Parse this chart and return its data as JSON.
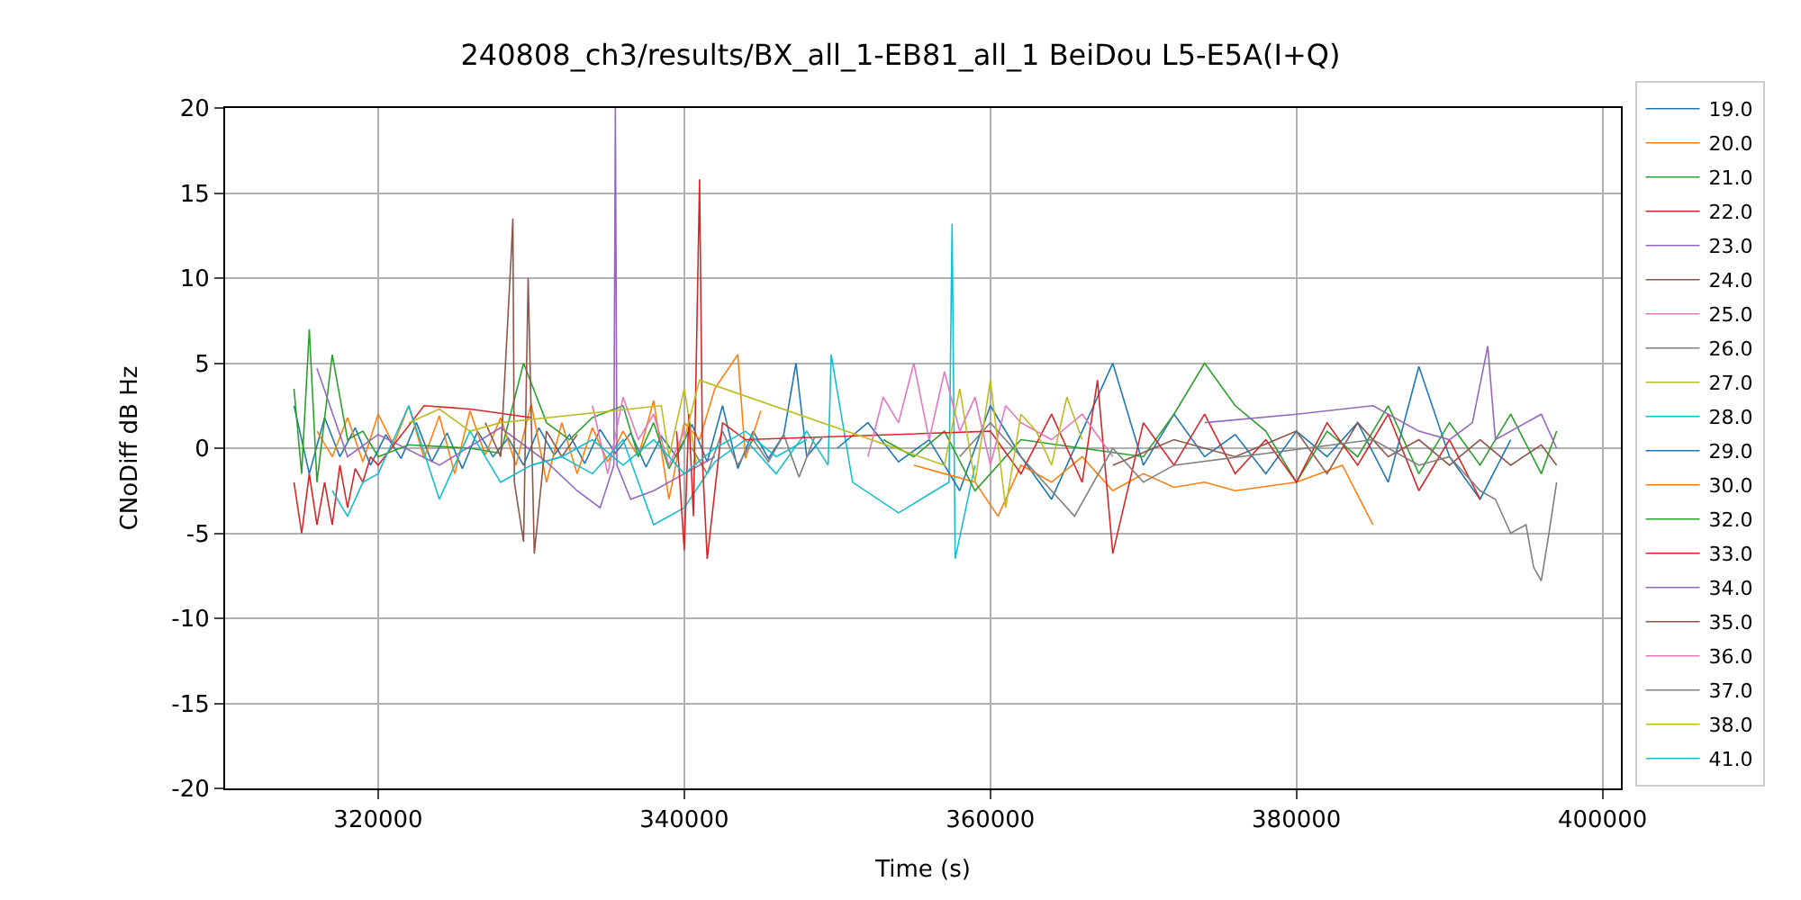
{
  "chart_data": {
    "type": "line",
    "title": "240808_ch3/results/BX_all_1-EB81_all_1 BeiDou L5-E5A(I+Q)",
    "xlabel": "Time (s)",
    "ylabel": "CNoDiff dB Hz",
    "xlim": [
      310000,
      401200
    ],
    "ylim": [
      -20,
      20
    ],
    "xticks": [
      320000,
      340000,
      360000,
      380000,
      400000
    ],
    "yticks": [
      -20,
      -15,
      -10,
      -5,
      0,
      5,
      10,
      15,
      20
    ],
    "grid": true,
    "legend": "right",
    "marker": "none",
    "line_style": "solid",
    "series": [
      {
        "name": "19.0",
        "color": "#1f77b4",
        "x": [
          314500,
          315500,
          316500,
          317500,
          318500,
          319500,
          320500,
          321500,
          322500,
          323500,
          324500,
          325500,
          326500,
          327500,
          328500,
          329500,
          330500,
          331500,
          332500,
          333500,
          334500,
          335500,
          336500,
          337500,
          338500,
          339500,
          340500,
          341500,
          342500,
          343500,
          344500,
          345500,
          346500,
          347300,
          348000,
          349000
        ],
        "values": [
          2.5,
          -1.5,
          1.8,
          -0.5,
          1.2,
          -1.0,
          0.8,
          -0.6,
          1.5,
          -0.8,
          0.9,
          -1.2,
          1.0,
          -0.5,
          0.6,
          -1.0,
          1.2,
          -0.4,
          0.8,
          -0.9,
          1.1,
          -0.3,
          0.9,
          -1.1,
          0.7,
          -0.5,
          1.4,
          -0.8,
          2.5,
          -1.2,
          1.0,
          -0.6,
          0.8,
          5.0,
          -0.5,
          0.6
        ]
      },
      {
        "name": "20.0",
        "color": "#ff7f0e",
        "x": [
          316000,
          317000,
          318000,
          319000,
          320000,
          321000,
          322000,
          323000,
          324000,
          325000,
          326000,
          327000,
          328000,
          329000,
          330000,
          331000,
          332000,
          333000,
          334000,
          335000,
          336000,
          337000,
          338000,
          339000,
          340000,
          341000,
          342000,
          343500,
          344000,
          345000
        ],
        "values": [
          1.0,
          -0.5,
          1.8,
          -0.8,
          2.0,
          0.2,
          2.5,
          -0.6,
          1.9,
          -1.5,
          2.2,
          -0.4,
          1.8,
          -1.0,
          2.6,
          -2.0,
          1.5,
          -1.5,
          1.2,
          -0.8,
          1.0,
          -0.5,
          2.8,
          -3.0,
          1.5,
          0.5,
          3.5,
          5.5,
          -0.6,
          2.2
        ]
      },
      {
        "name": "21.0",
        "color": "#2ca02c",
        "x": [
          314500,
          315000,
          315500,
          316000,
          317000,
          318000,
          319000,
          320000,
          322000,
          324000,
          326000,
          328000,
          329500,
          331000,
          332500,
          334000,
          336000,
          337000,
          338000,
          339000,
          340000
        ],
        "values": [
          3.5,
          -1.5,
          7.0,
          -2.0,
          5.5,
          0.5,
          1.0,
          -0.5,
          0.2,
          0.1,
          0.0,
          -0.3,
          5.0,
          1.5,
          0.5,
          1.8,
          2.5,
          -0.5,
          1.5,
          -1.2,
          0.5
        ]
      },
      {
        "name": "22.0",
        "color": "#d62728",
        "x": [
          314500,
          315000,
          315500,
          316000,
          316500,
          317000,
          317500,
          318000,
          318500,
          319000,
          319500,
          320000,
          323000,
          326000,
          330000
        ],
        "values": [
          -2.0,
          -5.0,
          -1.5,
          -4.5,
          -2.0,
          -4.5,
          -1.0,
          -3.5,
          -1.2,
          -2.0,
          -0.5,
          -1.0,
          2.5,
          2.3,
          1.8
        ]
      },
      {
        "name": "23.0",
        "color": "#9467bd",
        "x": [
          316000,
          318000,
          320000,
          324000,
          328000,
          331000,
          333000,
          334500,
          335400,
          335500,
          335600,
          336500,
          338000,
          340000,
          342000
        ],
        "values": [
          4.7,
          -0.5,
          0.8,
          -1.0,
          1.2,
          -0.8,
          -2.5,
          -3.5,
          -1.0,
          20.0,
          -1.0,
          -3.0,
          -2.5,
          -1.5,
          -0.5
        ]
      },
      {
        "name": "24.0",
        "color": "#8c564b",
        "x": [
          327000,
          328000,
          328700,
          328800,
          328900,
          329500,
          329800,
          330200,
          331000,
          332000,
          333000
        ],
        "values": [
          1.5,
          -0.5,
          11.5,
          13.5,
          -2.0,
          -5.5,
          10.0,
          -6.2,
          1.0,
          -0.5,
          0.8
        ]
      },
      {
        "name": "25.0",
        "color": "#e377c2",
        "x": [
          334000,
          335000,
          336000,
          337000,
          338000,
          339000,
          340000
        ],
        "values": [
          2.5,
          -1.5,
          3.0,
          0.5,
          2.0,
          -1.0,
          1.0
        ]
      },
      {
        "name": "26.0",
        "color": "#7f7f7f",
        "x": [
          340500,
          341500,
          342500,
          343500,
          344500,
          345500,
          346500,
          347500,
          348500
        ],
        "values": [
          0.0,
          -1.5,
          1.0,
          -1.0,
          0.5,
          -0.8,
          0.8,
          -1.7,
          0.6
        ]
      },
      {
        "name": "27.0",
        "color": "#bcbd22",
        "x": [
          322000,
          324000,
          326000,
          328000,
          338500,
          339000,
          340000,
          340800
        ],
        "values": [
          1.5,
          2.3,
          1.0,
          1.5,
          2.5,
          -0.5,
          3.5,
          -1.0
        ]
      },
      {
        "name": "28.0",
        "color": "#17becf",
        "x": [
          317000,
          318000,
          319000,
          320000,
          322000,
          324000,
          326000,
          328000,
          330000,
          332000,
          334000,
          336000,
          338000,
          340000,
          342000,
          344000,
          346000,
          348000,
          349400,
          349600,
          351000,
          354000,
          357300,
          357500,
          357700,
          359000
        ],
        "values": [
          -2.5,
          -4.0,
          -2.0,
          -1.5,
          2.5,
          -3.0,
          1.0,
          -2.0,
          -1.0,
          -0.5,
          -1.5,
          0.5,
          -4.5,
          -3.5,
          -0.8,
          0.5,
          -1.5,
          1.0,
          -1.0,
          5.5,
          -2.0,
          -3.8,
          -2.0,
          13.2,
          -6.5,
          -1.0
        ]
      },
      {
        "name": "29.0",
        "color": "#1f77b4",
        "x": [
          350000,
          352000,
          354000,
          356000,
          358000,
          360000,
          362000,
          364000,
          366000,
          368000,
          370000,
          372000,
          374000,
          376000,
          378000,
          380000,
          382000,
          384000,
          386000,
          388000,
          390000,
          392000,
          394000
        ],
        "values": [
          0.0,
          1.5,
          -0.8,
          0.5,
          -2.5,
          2.5,
          -0.5,
          -3.0,
          1.0,
          5.0,
          -1.0,
          2.0,
          -0.5,
          0.8,
          -1.5,
          1.0,
          -0.5,
          1.5,
          -2.0,
          4.8,
          -0.5,
          -3.0,
          0.5
        ]
      },
      {
        "name": "30.0",
        "color": "#ff7f0e",
        "x": [
          355000,
          357000,
          359000,
          360500,
          362000,
          364000,
          366000,
          368000,
          370000,
          372000,
          374000,
          376000,
          380000,
          383000,
          385000
        ],
        "values": [
          -1.0,
          -1.5,
          -2.0,
          -4.0,
          -1.0,
          -2.0,
          -0.5,
          -2.5,
          -1.5,
          -2.3,
          -2.0,
          -2.5,
          -2.0,
          -1.0,
          -4.5
        ]
      },
      {
        "name": "32.0",
        "color": "#2ca02c",
        "x": [
          353000,
          355000,
          357000,
          359000,
          362000,
          366000,
          370000,
          372000,
          374000,
          376000,
          378000,
          380000,
          382000,
          384000,
          386000,
          388000,
          390000,
          392000,
          394000,
          396000,
          397000
        ],
        "values": [
          0.5,
          -0.5,
          1.0,
          -2.5,
          0.5,
          0.0,
          -0.5,
          2.0,
          5.0,
          2.5,
          1.0,
          -2.0,
          1.0,
          -0.5,
          2.5,
          -1.5,
          1.5,
          -1.0,
          2.0,
          -1.5,
          1.0
        ]
      },
      {
        "name": "33.0",
        "color": "#d62728",
        "x": [
          339500,
          340000,
          340300,
          340600,
          341000,
          341200,
          341500,
          342500,
          344000,
          360000,
          362000,
          364000,
          366000,
          367000,
          368000,
          370000,
          372000,
          374000,
          376000,
          378000,
          380000,
          382000,
          384000,
          386000,
          388000,
          390000,
          392000
        ],
        "values": [
          1.0,
          -6.0,
          2.0,
          -4.0,
          15.8,
          -1.0,
          -6.5,
          1.5,
          0.5,
          1.0,
          -1.5,
          2.0,
          -2.0,
          4.0,
          -6.2,
          1.5,
          -1.0,
          2.0,
          -1.5,
          0.5,
          -2.0,
          1.5,
          -1.0,
          2.0,
          -2.5,
          0.5,
          -3.0
        ]
      },
      {
        "name": "34.0",
        "color": "#9467bd",
        "x": [
          374000,
          380000,
          385000,
          388000,
          390000,
          391500,
          392500,
          393000,
          394000,
          396000,
          397000
        ],
        "values": [
          1.5,
          2.0,
          2.5,
          1.0,
          0.5,
          1.5,
          6.0,
          0.5,
          1.0,
          2.0,
          0.0
        ]
      },
      {
        "name": "35.0",
        "color": "#8c564b",
        "x": [
          368000,
          372000,
          376000,
          380000,
          382000,
          384000,
          386000,
          388000,
          390000,
          392000,
          394000,
          396000,
          397000
        ],
        "values": [
          -1.0,
          0.5,
          -0.5,
          1.0,
          -1.5,
          1.5,
          -0.5,
          0.5,
          -1.0,
          0.5,
          -1.0,
          0.2,
          -1.0
        ]
      },
      {
        "name": "36.0",
        "color": "#e377c2",
        "x": [
          352000,
          353000,
          354000,
          355000,
          356000,
          357000,
          358000,
          359000,
          360000,
          361000,
          362000,
          364000,
          366000,
          368000
        ],
        "values": [
          -0.5,
          3.0,
          1.5,
          5.0,
          0.5,
          4.5,
          1.0,
          3.0,
          -1.0,
          2.5,
          1.5,
          0.5,
          2.0,
          -0.5
        ]
      },
      {
        "name": "37.0",
        "color": "#7f7f7f",
        "x": [
          358000,
          360000,
          362000,
          364000,
          365500,
          368000,
          370000,
          372000,
          385000,
          388000,
          390000,
          392000,
          393000,
          394000,
          395000,
          395500,
          396000,
          396500,
          397000
        ],
        "values": [
          -0.5,
          1.5,
          -0.5,
          -2.5,
          -4.0,
          0.0,
          -2.0,
          -1.0,
          0.5,
          -1.0,
          -0.5,
          -2.5,
          -3.0,
          -5.0,
          -4.5,
          -7.0,
          -7.8,
          -5.0,
          -2.0
        ]
      },
      {
        "name": "38.0",
        "color": "#bcbd22",
        "x": [
          340000,
          341000,
          357000,
          358000,
          359000,
          360000,
          361000,
          362000,
          363000,
          364000,
          365000,
          366000
        ],
        "values": [
          0.5,
          4.0,
          -1.0,
          3.5,
          -2.0,
          4.0,
          -3.5,
          2.0,
          1.0,
          -1.0,
          3.0,
          0.5
        ]
      },
      {
        "name": "41.0",
        "color": "#17becf",
        "x": [
          330000,
          332000,
          334000,
          336000,
          338000,
          340000,
          342000,
          344000,
          346000,
          348000
        ],
        "values": [
          -1.0,
          -0.5,
          0.5,
          -1.0,
          0.5,
          -1.5,
          0.0,
          1.0,
          -0.5,
          0.5
        ]
      }
    ]
  }
}
